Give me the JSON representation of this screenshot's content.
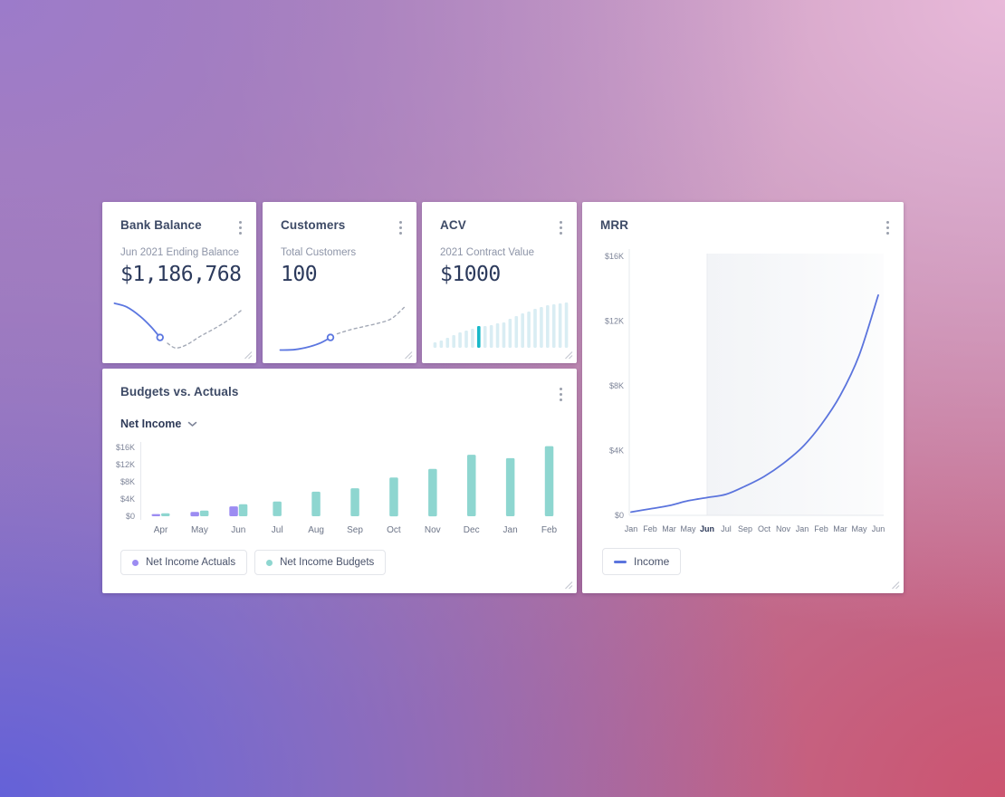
{
  "cards": {
    "bank_balance": {
      "title": "Bank Balance",
      "subtitle": "Jun 2021 Ending Balance",
      "value": "$1,186,768"
    },
    "customers": {
      "title": "Customers",
      "subtitle": "Total Customers",
      "value": "100"
    },
    "acv": {
      "title": "ACV",
      "subtitle": "2021 Contract Value",
      "value": "$1000"
    },
    "mrr": {
      "title": "MRR"
    },
    "budgets": {
      "title": "Budgets vs. Actuals",
      "metric_selector": "Net Income"
    }
  },
  "icons": {
    "kebab_menu": "kebab-menu",
    "chevron_down": "chevron-down",
    "resize_handle": "resize-handle"
  },
  "colors": {
    "card_title": "#3d4a66",
    "subtitle": "#8e95a8",
    "value_text": "#2c3a5c",
    "tick_label": "#7d8498",
    "month_label": "#6d7588",
    "month_label_bold": "#2d3a5a",
    "axis_line": "#e6e8ed",
    "spark_blue": "#5b76e0",
    "spark_dashed_gray": "#a3a9b6",
    "background_corners": [
      "#9c7bca",
      "#e8b9d9",
      "#6461d8",
      "#cc5470"
    ]
  },
  "chart_data": [
    {
      "id": "bank-balance-sparkline",
      "type": "line",
      "description": "Actual balance (solid) falling to current month marker, projected balance (dashed) recovering",
      "line_color": "#5b76e0",
      "dashed_color": "#a3a9b6",
      "solid_points_pct": [
        [
          1,
          5
        ],
        [
          10,
          12
        ],
        [
          20,
          30
        ],
        [
          28,
          50
        ],
        [
          34.5,
          70
        ]
      ],
      "marker_pct": [
        34.5,
        70
      ],
      "dashed_points_pct": [
        [
          40,
          81
        ],
        [
          46,
          90
        ],
        [
          54,
          84
        ],
        [
          64,
          68
        ],
        [
          76,
          51
        ],
        [
          87,
          33
        ],
        [
          95,
          17
        ]
      ]
    },
    {
      "id": "customers-sparkline",
      "type": "line",
      "description": "Actual customers (solid) rising to current month marker, projected (dashed) rising",
      "line_color": "#5b76e0",
      "dashed_color": "#a3a9b6",
      "solid_points_pct": [
        [
          5,
          94
        ],
        [
          16,
          93
        ],
        [
          26,
          88
        ],
        [
          35,
          80
        ],
        [
          42,
          70
        ]
      ],
      "marker_pct": [
        42,
        70
      ],
      "dashed_points_pct": [
        [
          47,
          63
        ],
        [
          57,
          55
        ],
        [
          67,
          49
        ],
        [
          77,
          43
        ],
        [
          87,
          34
        ],
        [
          97,
          11
        ]
      ]
    },
    {
      "id": "acv-bar-chart",
      "type": "bar",
      "description": "Contract value ramp, relative bar heights in percent of max; one highlighted current-period bar",
      "values_pct": [
        12,
        16,
        22,
        28,
        34,
        38,
        42,
        48,
        48,
        50,
        54,
        56,
        64,
        70,
        76,
        80,
        86,
        90,
        94,
        96,
        98,
        100
      ],
      "highlight_index": 7,
      "bar_color": "#d9edf3",
      "highlight_color": "#17b8c9"
    },
    {
      "id": "budgets-vs-actuals",
      "type": "bar",
      "title": "Budgets vs. Actuals",
      "metric": "Net Income",
      "categories": [
        "Apr",
        "May",
        "Jun",
        "Jul",
        "Aug",
        "Sep",
        "Oct",
        "Nov",
        "Dec",
        "Jan",
        "Feb"
      ],
      "series": [
        {
          "name": "Net Income Actuals",
          "color": "#9c8cf2",
          "values": [
            500,
            1000,
            2300,
            null,
            null,
            null,
            null,
            null,
            null,
            null,
            null
          ]
        },
        {
          "name": "Net Income Budgets",
          "color": "#8ed6d0",
          "values": [
            700,
            1300,
            2800,
            3400,
            5700,
            6500,
            9000,
            11000,
            14300,
            13500,
            16300
          ]
        }
      ],
      "yticks": [
        {
          "label": "$16K",
          "value": 16000
        },
        {
          "label": "$12K",
          "value": 12000
        },
        {
          "label": "$8K",
          "value": 8000
        },
        {
          "label": "$4K",
          "value": 4000
        },
        {
          "label": "$0",
          "value": 0
        }
      ],
      "ylim": [
        0,
        17200
      ],
      "legend_position": "bottom-left",
      "grid": false
    },
    {
      "id": "mrr-line-chart",
      "type": "line",
      "title": "MRR",
      "categories": [
        "Jan",
        "Feb",
        "Mar",
        "May",
        "Jun",
        "Jul",
        "Sep",
        "Oct",
        "Nov",
        "Jan",
        "Feb",
        "Mar",
        "May",
        "Jun"
      ],
      "bold_category_index": 4,
      "forecast_start_index": 4,
      "forecast_fill": "#f2f4f7",
      "series": [
        {
          "name": "Income",
          "color": "#5b74dd",
          "values": [
            200,
            400,
            600,
            900,
            1100,
            1300,
            1800,
            2400,
            3200,
            4200,
            5600,
            7400,
            9900,
            13600
          ]
        }
      ],
      "yticks": [
        {
          "label": "$16K",
          "value": 16000
        },
        {
          "label": "$12K",
          "value": 12000
        },
        {
          "label": "$8K",
          "value": 8000
        },
        {
          "label": "$4K",
          "value": 4000
        },
        {
          "label": "$0",
          "value": 0
        }
      ],
      "ylim": [
        0,
        16500
      ],
      "legend_position": "bottom-left",
      "grid": false
    }
  ]
}
